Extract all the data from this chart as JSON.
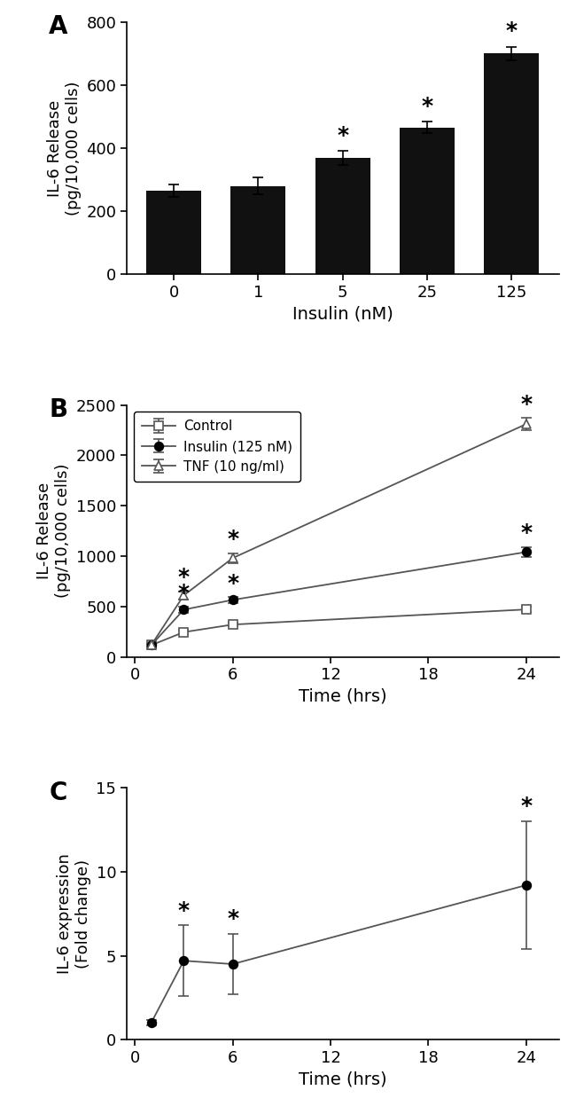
{
  "panel_A": {
    "categories": [
      "0",
      "1",
      "5",
      "25",
      "125"
    ],
    "values": [
      265,
      280,
      368,
      465,
      700
    ],
    "errors": [
      20,
      28,
      22,
      18,
      22
    ],
    "bar_color": "#111111",
    "ylabel": "IL-6 Release\n(pg/10,000 cells)",
    "xlabel": "Insulin (nM)",
    "ylim": [
      0,
      800
    ],
    "yticks": [
      0,
      200,
      400,
      600,
      800
    ],
    "significant": [
      false,
      false,
      true,
      true,
      true
    ],
    "panel_label": "A"
  },
  "panel_B": {
    "time_points": [
      1,
      3,
      6,
      24
    ],
    "control": [
      115,
      245,
      320,
      470
    ],
    "control_err": [
      15,
      20,
      20,
      25
    ],
    "insulin": [
      115,
      468,
      565,
      1040
    ],
    "insulin_err": [
      15,
      30,
      30,
      50
    ],
    "tnf": [
      115,
      610,
      980,
      2310
    ],
    "tnf_err": [
      15,
      40,
      50,
      60
    ],
    "ylabel": "IL-6 Release\n(pg/10,000 cells)",
    "xlabel": "Time (hrs)",
    "ylim": [
      0,
      2500
    ],
    "yticks": [
      0,
      500,
      1000,
      1500,
      2000,
      2500
    ],
    "xticks": [
      0,
      6,
      12,
      18,
      24
    ],
    "xlim": [
      -0.5,
      26
    ],
    "legend_labels": [
      "Control",
      "Insulin (125 nM)",
      "TNF (10 ng/ml)"
    ],
    "panel_label": "B"
  },
  "panel_C": {
    "time_points": [
      1,
      3,
      6,
      24
    ],
    "values": [
      1.0,
      4.7,
      4.5,
      9.2
    ],
    "errors": [
      0.15,
      2.1,
      1.8,
      3.8
    ],
    "ylabel": "IL-6 expression\n(Fold change)",
    "xlabel": "Time (hrs)",
    "ylim": [
      0,
      15
    ],
    "yticks": [
      0,
      5,
      10,
      15
    ],
    "xticks": [
      0,
      6,
      12,
      18,
      24
    ],
    "xlim": [
      -0.5,
      26
    ],
    "significant": [
      false,
      true,
      true,
      true
    ],
    "panel_label": "C"
  }
}
